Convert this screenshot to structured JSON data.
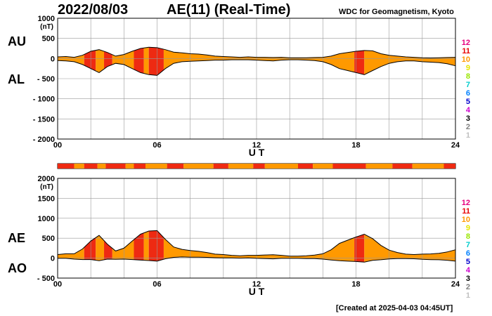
{
  "header": {
    "date": "2022/08/03",
    "title": "AE(11) (Real-Time)",
    "source": "WDC for Geomagnetism, Kyoto"
  },
  "footer": {
    "created": "[Created at 2025-04-03 04:45UT]"
  },
  "level_legend": [
    {
      "label": "12",
      "color": "#e6007e"
    },
    {
      "label": "11",
      "color": "#e60000"
    },
    {
      "label": "10",
      "color": "#ff9900"
    },
    {
      "label": "9",
      "color": "#e6e600"
    },
    {
      "label": "8",
      "color": "#99e600"
    },
    {
      "label": "7",
      "color": "#00cccc"
    },
    {
      "label": "6",
      "color": "#0080ff"
    },
    {
      "label": "5",
      "color": "#0000cc"
    },
    {
      "label": "4",
      "color": "#cc00cc"
    },
    {
      "label": "3",
      "color": "#000000"
    },
    {
      "label": "2",
      "color": "#808080"
    },
    {
      "label": "1",
      "color": "#c0c0c0"
    }
  ],
  "colors": {
    "fill_level10": "#ff9900",
    "fill_level11": "#ee2a12",
    "grid": "#999999"
  },
  "chart_data": [
    {
      "type": "area",
      "series": [
        {
          "name": "AU"
        },
        {
          "name": "AL"
        }
      ],
      "xlabel": "U T",
      "ylabel": "(nT)",
      "xlim": [
        0,
        24
      ],
      "ylim": [
        -2000,
        1000
      ],
      "x_ticks": [
        "00",
        "06",
        "12",
        "18",
        "24"
      ],
      "y_ticks": [
        "1000",
        "500",
        "0",
        "- 500",
        "- 1000",
        "- 1500",
        "- 2000"
      ],
      "x": [
        0,
        0.5,
        1,
        1.5,
        2,
        2.5,
        3,
        3.5,
        4,
        4.5,
        5,
        5.5,
        6,
        6.5,
        7,
        7.5,
        8,
        8.5,
        9,
        9.5,
        10,
        10.5,
        11,
        11.5,
        12,
        12.5,
        13,
        13.5,
        14,
        14.5,
        15,
        15.5,
        16,
        16.5,
        17,
        17.5,
        18,
        18.5,
        19,
        19.5,
        20,
        20.5,
        21,
        21.5,
        22,
        22.5,
        23,
        23.5,
        24
      ],
      "au": [
        40,
        50,
        30,
        80,
        180,
        220,
        150,
        60,
        100,
        180,
        250,
        280,
        270,
        220,
        160,
        140,
        120,
        110,
        90,
        60,
        50,
        40,
        30,
        40,
        30,
        30,
        25,
        30,
        20,
        20,
        20,
        25,
        30,
        60,
        120,
        150,
        180,
        200,
        190,
        120,
        80,
        60,
        40,
        30,
        20,
        15,
        20,
        25,
        30
      ],
      "al": [
        -50,
        -60,
        -80,
        -150,
        -250,
        -350,
        -200,
        -120,
        -150,
        -250,
        -350,
        -400,
        -420,
        -250,
        -120,
        -80,
        -70,
        -60,
        -50,
        -40,
        -40,
        -30,
        -30,
        -30,
        -40,
        -50,
        -60,
        -40,
        -30,
        -30,
        -40,
        -50,
        -80,
        -150,
        -250,
        -300,
        -350,
        -400,
        -300,
        -200,
        -120,
        -80,
        -60,
        -60,
        -80,
        -90,
        -100,
        -130,
        -180
      ],
      "bands": [
        {
          "start": 0,
          "end": 1.6,
          "level": 10
        },
        {
          "start": 1.6,
          "end": 2.3,
          "level": 11
        },
        {
          "start": 2.3,
          "end": 2.8,
          "level": 10
        },
        {
          "start": 2.8,
          "end": 3.3,
          "level": 11
        },
        {
          "start": 3.3,
          "end": 4.6,
          "level": 10
        },
        {
          "start": 4.6,
          "end": 5.2,
          "level": 11
        },
        {
          "start": 5.2,
          "end": 5.5,
          "level": 10
        },
        {
          "start": 5.5,
          "end": 6.4,
          "level": 11
        },
        {
          "start": 6.4,
          "end": 17.9,
          "level": 10
        },
        {
          "start": 17.9,
          "end": 18.5,
          "level": 11
        },
        {
          "start": 18.5,
          "end": 24,
          "level": 10
        }
      ],
      "left_labels": [
        "AU",
        "AL"
      ]
    },
    {
      "type": "area",
      "series": [
        {
          "name": "AE"
        },
        {
          "name": "AO"
        }
      ],
      "xlabel": "U T",
      "ylabel": "(nT)",
      "xlim": [
        0,
        24
      ],
      "ylim": [
        -500,
        2000
      ],
      "x_ticks": [
        "00",
        "06",
        "12",
        "18",
        "24"
      ],
      "y_ticks": [
        "2000",
        "1500",
        "1000",
        "500",
        "0",
        "- 500"
      ],
      "x": [
        0,
        0.5,
        1,
        1.5,
        2,
        2.5,
        3,
        3.5,
        4,
        4.5,
        5,
        5.5,
        6,
        6.5,
        7,
        7.5,
        8,
        8.5,
        9,
        9.5,
        10,
        10.5,
        11,
        11.5,
        12,
        12.5,
        13,
        13.5,
        14,
        14.5,
        15,
        15.5,
        16,
        16.5,
        17,
        17.5,
        18,
        18.5,
        19,
        19.5,
        20,
        20.5,
        21,
        21.5,
        22,
        22.5,
        23,
        23.5,
        24
      ],
      "ae": [
        90,
        110,
        110,
        230,
        430,
        570,
        350,
        180,
        250,
        430,
        600,
        680,
        690,
        470,
        280,
        220,
        190,
        170,
        140,
        100,
        90,
        70,
        60,
        70,
        70,
        80,
        85,
        70,
        50,
        50,
        60,
        75,
        110,
        210,
        370,
        450,
        530,
        600,
        490,
        320,
        200,
        140,
        100,
        90,
        100,
        105,
        120,
        155,
        210
      ],
      "ao": [
        -5,
        -5,
        -25,
        -35,
        -35,
        -65,
        -25,
        -30,
        -25,
        -35,
        -50,
        -60,
        -75,
        -15,
        20,
        30,
        25,
        25,
        20,
        10,
        5,
        5,
        0,
        5,
        -5,
        -10,
        -17,
        -5,
        -5,
        -5,
        -10,
        -12,
        -25,
        -45,
        -65,
        -75,
        -85,
        -100,
        -55,
        -40,
        -20,
        -10,
        -10,
        -15,
        -30,
        -37,
        -40,
        -52,
        -75
      ],
      "bands": [
        {
          "start": 0,
          "end": 1.6,
          "level": 10
        },
        {
          "start": 1.6,
          "end": 2.3,
          "level": 11
        },
        {
          "start": 2.3,
          "end": 2.8,
          "level": 10
        },
        {
          "start": 2.8,
          "end": 3.3,
          "level": 11
        },
        {
          "start": 3.3,
          "end": 4.6,
          "level": 10
        },
        {
          "start": 4.6,
          "end": 5.2,
          "level": 11
        },
        {
          "start": 5.2,
          "end": 5.5,
          "level": 10
        },
        {
          "start": 5.5,
          "end": 6.4,
          "level": 11
        },
        {
          "start": 6.4,
          "end": 17.9,
          "level": 10
        },
        {
          "start": 17.9,
          "end": 18.5,
          "level": 11
        },
        {
          "start": 18.5,
          "end": 24,
          "level": 10
        }
      ],
      "left_labels": [
        "AE",
        "AO"
      ]
    }
  ],
  "station_bar": [
    {
      "start": 0,
      "end": 1.0,
      "level": 11
    },
    {
      "start": 1.0,
      "end": 1.6,
      "level": 10
    },
    {
      "start": 1.6,
      "end": 2.4,
      "level": 11
    },
    {
      "start": 2.4,
      "end": 2.9,
      "level": 10
    },
    {
      "start": 2.9,
      "end": 4.1,
      "level": 11
    },
    {
      "start": 4.1,
      "end": 4.6,
      "level": 10
    },
    {
      "start": 4.6,
      "end": 5.3,
      "level": 11
    },
    {
      "start": 5.3,
      "end": 6.6,
      "level": 10
    },
    {
      "start": 6.6,
      "end": 7.6,
      "level": 11
    },
    {
      "start": 7.6,
      "end": 9.4,
      "level": 10
    },
    {
      "start": 9.4,
      "end": 10.3,
      "level": 11
    },
    {
      "start": 10.3,
      "end": 11.8,
      "level": 10
    },
    {
      "start": 11.8,
      "end": 12.5,
      "level": 11
    },
    {
      "start": 12.5,
      "end": 14.5,
      "level": 10
    },
    {
      "start": 14.5,
      "end": 15.4,
      "level": 11
    },
    {
      "start": 15.4,
      "end": 16.6,
      "level": 10
    },
    {
      "start": 16.6,
      "end": 18.6,
      "level": 11
    },
    {
      "start": 18.6,
      "end": 20.2,
      "level": 10
    },
    {
      "start": 20.2,
      "end": 21.4,
      "level": 11
    },
    {
      "start": 21.4,
      "end": 23.3,
      "level": 10
    },
    {
      "start": 23.3,
      "end": 24,
      "level": 11
    }
  ]
}
